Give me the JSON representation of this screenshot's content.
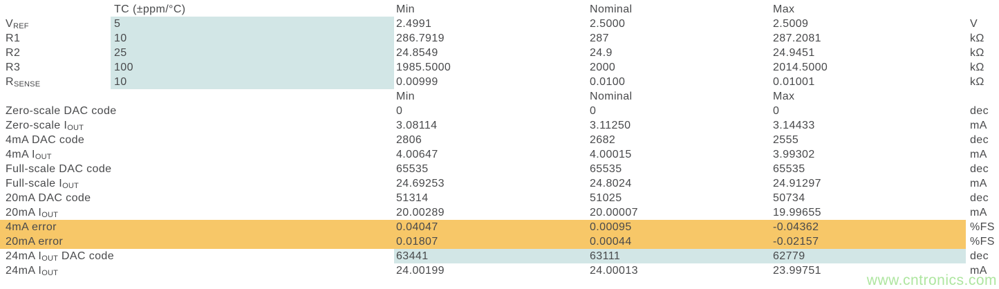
{
  "colors": {
    "teal_highlight": "#d2e6e6",
    "orange_highlight": "#f7c768",
    "text": "#48494b",
    "watermark_green": "#aee6a0"
  },
  "headers": {
    "row1": {
      "tc": "TC (±ppm/°C)",
      "min": "Min",
      "nominal": "Nominal",
      "max": "Max"
    },
    "row2": {
      "min": "Min",
      "nominal": "Nominal",
      "max": "Max"
    }
  },
  "section1": {
    "rows": [
      {
        "label": [
          {
            "t": "V"
          },
          {
            "t": "REF",
            "sub": true
          }
        ],
        "tc": "5",
        "min": "2.4991",
        "nominal": "2.5000",
        "max": "2.5009",
        "unit": "V",
        "highlight": "tc"
      },
      {
        "label": [
          {
            "t": "R1"
          }
        ],
        "tc": "10",
        "min": "286.7919",
        "nominal": "287",
        "max": "287.2081",
        "unit": "kΩ",
        "highlight": "tc"
      },
      {
        "label": [
          {
            "t": "R2"
          }
        ],
        "tc": "25",
        "min": "24.8549",
        "nominal": "24.9",
        "max": "24.9451",
        "unit": "kΩ",
        "highlight": "tc"
      },
      {
        "label": [
          {
            "t": "R3"
          }
        ],
        "tc": "100",
        "min": "1985.5000",
        "nominal": "2000",
        "max": "2014.5000",
        "unit": "kΩ",
        "highlight": "tc"
      },
      {
        "label": [
          {
            "t": "R"
          },
          {
            "t": "SENSE",
            "sub": true
          }
        ],
        "tc": "10",
        "min": "0.00999",
        "nominal": "0.0100",
        "max": "0.01001",
        "unit": "kΩ",
        "highlight": "tc"
      }
    ]
  },
  "section2": {
    "rows": [
      {
        "label": [
          {
            "t": "Zero-scale DAC code"
          }
        ],
        "min": "0",
        "nominal": "0",
        "max": "0",
        "unit": "dec"
      },
      {
        "label": [
          {
            "t": "Zero-scale I"
          },
          {
            "t": "OUT",
            "sub": true
          }
        ],
        "min": "3.08114",
        "nominal": "3.11250",
        "max": "3.14433",
        "unit": "mA"
      },
      {
        "label": [
          {
            "t": "4mA DAC code"
          }
        ],
        "min": "2806",
        "nominal": "2682",
        "max": "2555",
        "unit": "dec"
      },
      {
        "label": [
          {
            "t": "4mA I"
          },
          {
            "t": "OUT",
            "sub": true
          }
        ],
        "min": "4.00647",
        "nominal": "4.00015",
        "max": "3.99302",
        "unit": "mA"
      },
      {
        "label": [
          {
            "t": "Full-scale DAC code"
          }
        ],
        "min": "65535",
        "nominal": "65535",
        "max": "65535",
        "unit": "dec"
      },
      {
        "label": [
          {
            "t": "Full-scale I"
          },
          {
            "t": "OUT",
            "sub": true
          }
        ],
        "min": "24.69253",
        "nominal": "24.8024",
        "max": "24.91297",
        "unit": "mA"
      },
      {
        "label": [
          {
            "t": "20mA DAC code"
          }
        ],
        "min": "51314",
        "nominal": "51025",
        "max": "50734",
        "unit": "dec"
      },
      {
        "label": [
          {
            "t": "20mA I"
          },
          {
            "t": "OUT",
            "sub": true
          }
        ],
        "min": "20.00289",
        "nominal": "20.00007",
        "max": "19.99655",
        "unit": "mA"
      },
      {
        "label": [
          {
            "t": "4mA error"
          }
        ],
        "min": "0.04047",
        "nominal": "0.00095",
        "max": "-0.04362",
        "unit": "%FS",
        "highlight": "orange"
      },
      {
        "label": [
          {
            "t": "20mA error"
          }
        ],
        "min": "0.01807",
        "nominal": "0.00044",
        "max": "-0.02157",
        "unit": "%FS",
        "highlight": "orange"
      },
      {
        "label": [
          {
            "t": "24mA I"
          },
          {
            "t": "OUT",
            "sub": true
          },
          {
            "t": " DAC code"
          }
        ],
        "min": "63441",
        "nominal": "63111",
        "max": "62779",
        "unit": "dec",
        "highlight": "teal-values"
      },
      {
        "label": [
          {
            "t": "24mA I"
          },
          {
            "t": "OUT",
            "sub": true
          }
        ],
        "min": "24.00199",
        "nominal": "24.00013",
        "max": "23.99751",
        "unit": "mA"
      }
    ]
  },
  "watermark": "www.cntronics.com"
}
